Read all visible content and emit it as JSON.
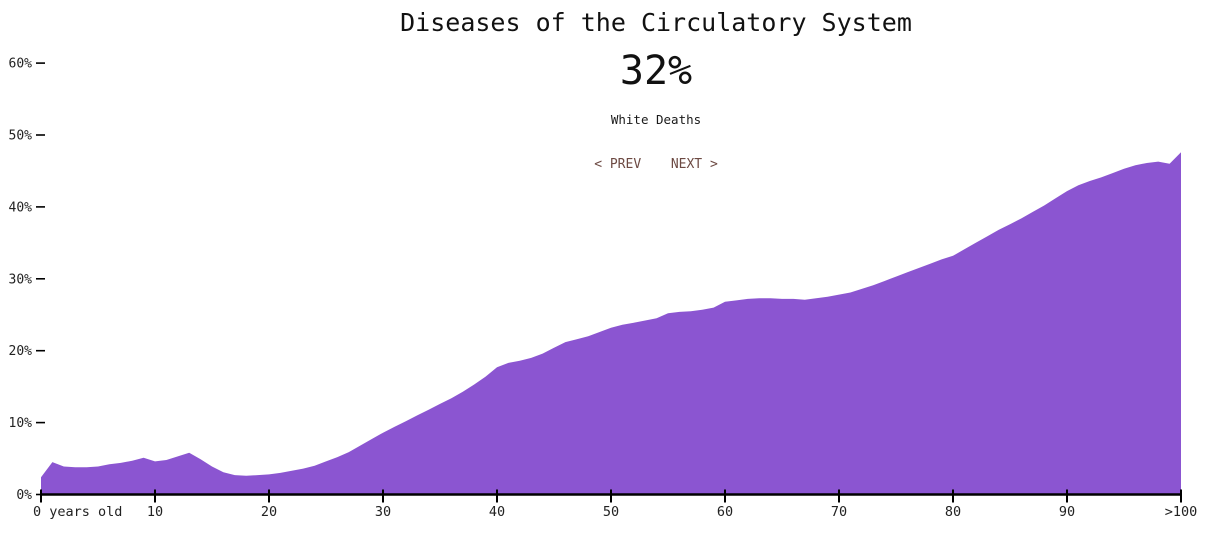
{
  "header": {
    "title": "Diseases of the Circulatory System",
    "value": "32%",
    "subtitle": "White Deaths",
    "nav": {
      "prev_label": "< PREV",
      "next_label": "NEXT >"
    }
  },
  "colors": {
    "area_fill": "#8b55d1",
    "axis": "#000000",
    "tick_text": "#222222",
    "nav_links": "#6d4a43",
    "background": "#ffffff"
  },
  "chart_data": {
    "type": "area",
    "title": "Diseases of the Circulatory System",
    "center_value": "32%",
    "series_name": "White Deaths",
    "xlabel": "",
    "ylabel": "",
    "grid": false,
    "legend": false,
    "xlim_note": "ages 0 through 99 plus a final >100 point",
    "ylim": [
      0,
      60
    ],
    "x_tick_labels": [
      "0 years old",
      "10",
      "20",
      "30",
      "40",
      "50",
      "60",
      "70",
      "80",
      "90",
      ">100"
    ],
    "y_tick_labels": [
      "0%",
      "10%",
      "20%",
      "30%",
      "40%",
      "50%",
      "60%"
    ],
    "x": [
      0,
      1,
      2,
      3,
      4,
      5,
      6,
      7,
      8,
      9,
      10,
      11,
      12,
      13,
      14,
      15,
      16,
      17,
      18,
      19,
      20,
      21,
      22,
      23,
      24,
      25,
      26,
      27,
      28,
      29,
      30,
      31,
      32,
      33,
      34,
      35,
      36,
      37,
      38,
      39,
      40,
      41,
      42,
      43,
      44,
      45,
      46,
      47,
      48,
      49,
      50,
      51,
      52,
      53,
      54,
      55,
      56,
      57,
      58,
      59,
      60,
      61,
      62,
      63,
      64,
      65,
      66,
      67,
      68,
      69,
      70,
      71,
      72,
      73,
      74,
      75,
      76,
      77,
      78,
      79,
      80,
      81,
      82,
      83,
      84,
      85,
      86,
      87,
      88,
      89,
      90,
      91,
      92,
      93,
      94,
      95,
      96,
      97,
      98,
      99,
      ">100"
    ],
    "values": [
      2.4,
      4.5,
      3.9,
      3.8,
      3.8,
      3.9,
      4.2,
      4.4,
      4.7,
      5.1,
      4.6,
      4.8,
      5.3,
      5.8,
      4.9,
      3.9,
      3.1,
      2.7,
      2.6,
      2.7,
      2.8,
      3.0,
      3.3,
      3.6,
      4.0,
      4.6,
      5.2,
      5.9,
      6.8,
      7.7,
      8.6,
      9.4,
      10.2,
      11.0,
      11.8,
      12.6,
      13.4,
      14.3,
      15.3,
      16.4,
      17.7,
      18.3,
      18.6,
      19.0,
      19.6,
      20.4,
      21.2,
      21.6,
      22.0,
      22.6,
      23.2,
      23.6,
      23.9,
      24.2,
      24.5,
      25.2,
      25.4,
      25.5,
      25.7,
      26.0,
      26.8,
      27.0,
      27.2,
      27.3,
      27.3,
      27.2,
      27.2,
      27.1,
      27.3,
      27.5,
      27.8,
      28.1,
      28.6,
      29.1,
      29.7,
      30.3,
      30.9,
      31.5,
      32.1,
      32.7,
      33.2,
      34.1,
      35.0,
      35.9,
      36.8,
      37.6,
      38.4,
      39.3,
      40.2,
      41.2,
      42.2,
      43.0,
      43.6,
      44.1,
      44.7,
      45.3,
      45.8,
      46.1,
      46.3,
      46.0,
      47.6
    ]
  }
}
